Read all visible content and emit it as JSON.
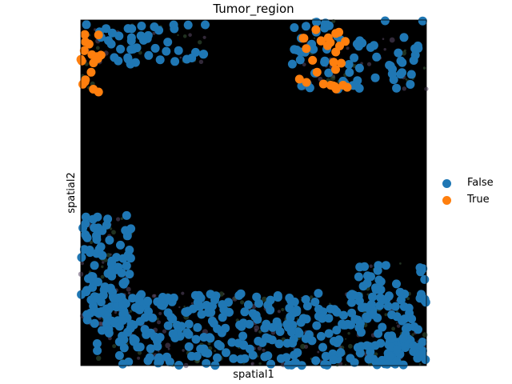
{
  "chart_data": {
    "type": "scatter",
    "title": "Tumor_region",
    "xlabel": "spatial1",
    "ylabel": "spatial2",
    "xlim": [
      0,
      1000
    ],
    "ylim": [
      0,
      1000
    ],
    "x_ticks_shown": false,
    "y_ticks_shown": false,
    "grid": false,
    "background": "tissue image (mostly black)",
    "legend_position": "right",
    "series": [
      {
        "name": "False",
        "color": "#1f77b4",
        "clusters": [
          {
            "region": "top-left",
            "x": [
              10,
              360
            ],
            "y": [
              870,
              990
            ],
            "approx_points": 45
          },
          {
            "region": "top-right",
            "x": [
              610,
              1000
            ],
            "y": [
              800,
              1000
            ],
            "approx_points": 70
          },
          {
            "region": "left-band",
            "x": [
              0,
              150
            ],
            "y": [
              120,
              440
            ],
            "approx_points": 85
          },
          {
            "region": "bottom",
            "x": [
              40,
              1000
            ],
            "y": [
              0,
              210
            ],
            "approx_points": 330
          },
          {
            "region": "bottom-right",
            "x": [
              800,
              1000
            ],
            "y": [
              0,
              300
            ],
            "approx_points": 70
          }
        ]
      },
      {
        "name": "True",
        "color": "#ff7f0e",
        "clusters": [
          {
            "region": "left-edge",
            "x": [
              0,
              60
            ],
            "y": [
              790,
              960
            ],
            "approx_points": 18
          },
          {
            "region": "top-center",
            "x": [
              620,
              780
            ],
            "y": [
              800,
              1000
            ],
            "approx_points": 28
          }
        ]
      }
    ],
    "legend": [
      "False",
      "True"
    ]
  }
}
